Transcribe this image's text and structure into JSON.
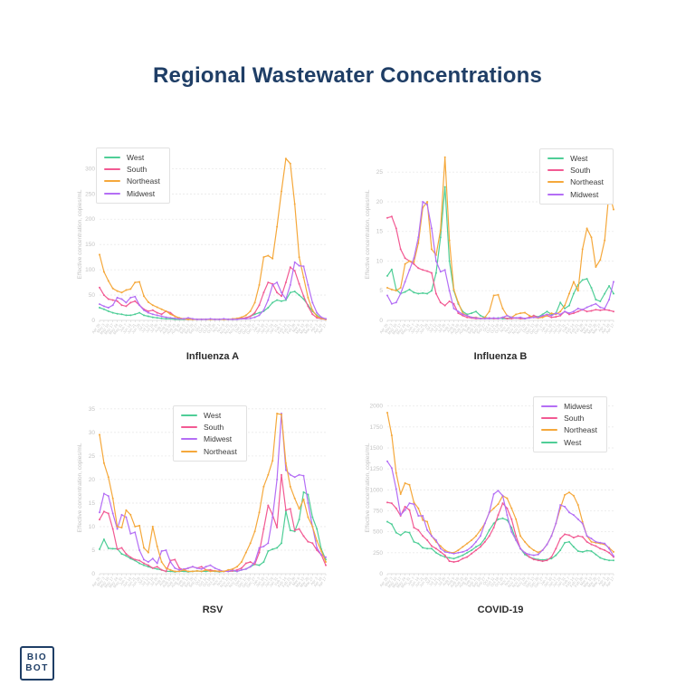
{
  "page": {
    "title": "Regional Wastewater Concentrations",
    "title_color": "#1f3e66",
    "background": "#ffffff"
  },
  "logo": {
    "line1": "BIO",
    "line2": "BOT",
    "color": "#1f3e66"
  },
  "region_colors": {
    "West": "#4fce97",
    "South": "#f25a93",
    "Northeast": "#f5a83b",
    "Midwest": "#b46ef5"
  },
  "axis_style": {
    "ylabel": "Effective concentration, copies/mL",
    "grid": "horizontal dashed",
    "tick_color": "#c4c4c4"
  },
  "x_tick_labels": [
    "Apr 26",
    "May 3",
    "May 10",
    "May 17",
    "May 24",
    "May 31",
    "Jun 7",
    "Jun 14",
    "Jun 21",
    "Jun 28",
    "Jul 5",
    "Jul 12",
    "Jul 19",
    "Jul 26",
    "Aug 2",
    "Aug 9",
    "Aug 16",
    "Aug 23",
    "Aug 30",
    "Sep 6",
    "Sep 13",
    "Sep 20",
    "Sep 27",
    "Oct 4",
    "Oct 11",
    "Oct 18",
    "Oct 25",
    "Nov 1",
    "Nov 8",
    "Nov 15",
    "Nov 22",
    "Nov 29",
    "Dec 6",
    "Dec 13",
    "Dec 20",
    "Dec 27",
    "Jan 3",
    "Jan 10",
    "Jan 17",
    "Jan 24",
    "Jan 31",
    "Feb 7",
    "Feb 14",
    "Feb 21",
    "Feb 28",
    "Mar 6",
    "Mar 13",
    "Mar 20",
    "Mar 27",
    "Apr 3",
    "Apr 10",
    "Apr 17"
  ],
  "chart_data": [
    {
      "type": "line",
      "title": "Influenza A",
      "ylabel": "Effective concentration, copies/mL",
      "yticks": [
        0,
        50,
        100,
        150,
        200,
        250,
        300
      ],
      "ymax": 340,
      "legend_position": "top-left",
      "legend_order": [
        "West",
        "South",
        "Northeast",
        "Midwest"
      ],
      "series": [
        {
          "name": "West",
          "values": [
            25,
            22,
            18,
            15,
            13,
            12,
            10,
            10,
            12,
            15,
            10,
            8,
            6,
            5,
            4,
            3,
            3,
            2,
            2,
            2,
            2,
            2,
            2,
            2,
            2,
            2,
            2,
            2,
            2,
            2,
            2,
            3,
            4,
            5,
            8,
            12,
            15,
            18,
            25,
            35,
            40,
            38,
            40,
            55,
            57,
            50,
            42,
            30,
            18,
            10,
            4,
            2
          ]
        },
        {
          "name": "South",
          "values": [
            65,
            50,
            42,
            40,
            38,
            30,
            28,
            35,
            38,
            30,
            22,
            18,
            20,
            15,
            12,
            18,
            15,
            8,
            4,
            3,
            2,
            2,
            2,
            2,
            2,
            2,
            2,
            2,
            2,
            2,
            2,
            3,
            4,
            5,
            8,
            15,
            30,
            55,
            75,
            72,
            55,
            48,
            75,
            105,
            98,
            72,
            48,
            28,
            12,
            5,
            3,
            2
          ]
        },
        {
          "name": "Northeast",
          "values": [
            130,
            96,
            78,
            63,
            58,
            55,
            60,
            62,
            75,
            76,
            48,
            36,
            30,
            26,
            22,
            18,
            12,
            8,
            5,
            3,
            2,
            2,
            2,
            2,
            2,
            2,
            2,
            2,
            2,
            2,
            3,
            4,
            6,
            10,
            18,
            35,
            70,
            125,
            128,
            122,
            185,
            255,
            320,
            310,
            230,
            125,
            85,
            45,
            20,
            8,
            4,
            2
          ]
        },
        {
          "name": "Midwest",
          "values": [
            32,
            28,
            25,
            30,
            45,
            42,
            35,
            45,
            47,
            30,
            20,
            15,
            12,
            10,
            8,
            6,
            5,
            4,
            3,
            3,
            5,
            3,
            2,
            2,
            2,
            3,
            2,
            2,
            3,
            2,
            2,
            2,
            3,
            3,
            4,
            6,
            10,
            20,
            40,
            70,
            75,
            55,
            42,
            70,
            115,
            108,
            107,
            70,
            35,
            15,
            6,
            3
          ]
        }
      ]
    },
    {
      "type": "line",
      "title": "Influenza B",
      "ylabel": "Effective concentration, copies/mL",
      "yticks": [
        0,
        5,
        10,
        15,
        20,
        25
      ],
      "ymax": 29,
      "legend_position": "top-right",
      "legend_order": [
        "West",
        "South",
        "Northeast",
        "Midwest"
      ],
      "series": [
        {
          "name": "West",
          "values": [
            7.5,
            8.6,
            5.2,
            4.5,
            4.8,
            5.2,
            4.7,
            4.5,
            4.6,
            4.5,
            5,
            8,
            14,
            22.5,
            10,
            5,
            2.8,
            1.5,
            1,
            1.2,
            1.5,
            0.8,
            0.5,
            0.3,
            0.3,
            0.4,
            0.3,
            0.3,
            0.5,
            0.4,
            0.3,
            0.3,
            0.5,
            0.8,
            0.6,
            1,
            1.5,
            1,
            1.2,
            3,
            2,
            2.5,
            4.5,
            6,
            6.8,
            7,
            5.5,
            3.5,
            3.2,
            4.5,
            5.8,
            4.5
          ]
        },
        {
          "name": "South",
          "values": [
            17.3,
            17.5,
            15.5,
            12,
            10.5,
            10,
            9.5,
            8.8,
            8.5,
            8.3,
            8,
            4.5,
            3,
            2.5,
            3.2,
            2.8,
            1.2,
            0.8,
            0.5,
            0.4,
            0.3,
            0.3,
            0.3,
            0.4,
            0.3,
            0.3,
            0.5,
            0.3,
            0.3,
            0.4,
            0.3,
            0.3,
            0.5,
            0.8,
            0.5,
            0.6,
            0.8,
            0.5,
            0.6,
            0.8,
            1.5,
            1,
            1.2,
            1.5,
            1.8,
            1.5,
            1.6,
            1.8,
            1.7,
            1.8,
            1.7,
            1.5
          ]
        },
        {
          "name": "Northeast",
          "values": [
            5.5,
            5.2,
            5,
            5.5,
            9.5,
            10,
            9.8,
            13,
            19,
            20,
            12,
            11,
            15.2,
            27.5,
            13.5,
            5.2,
            3,
            1.2,
            0.8,
            0.5,
            0.5,
            0.3,
            0.5,
            1.5,
            4.2,
            4.3,
            2,
            0.8,
            0.5,
            1,
            1.2,
            1.3,
            0.8,
            0.5,
            0.4,
            0.5,
            0.8,
            1.2,
            1,
            1.5,
            2.5,
            4.5,
            6.5,
            5,
            12,
            15.5,
            14,
            9,
            10.2,
            13.5,
            21.8,
            18.7
          ]
        },
        {
          "name": "Midwest",
          "values": [
            4.2,
            2.8,
            3,
            4.5,
            6.5,
            8.5,
            10.5,
            14,
            20,
            19.5,
            15.5,
            10,
            8.2,
            8.5,
            5,
            2,
            1.5,
            1,
            0.8,
            0.5,
            0.4,
            0.3,
            0.3,
            0.3,
            0.4,
            0.3,
            0.5,
            0.8,
            0.5,
            0.4,
            0.5,
            0.3,
            0.4,
            0.5,
            0.5,
            0.8,
            1,
            0.8,
            1.2,
            1,
            1.5,
            1.2,
            1.5,
            2,
            1.8,
            2.2,
            2.5,
            2.8,
            2.2,
            2,
            3.5,
            6.5
          ]
        }
      ]
    },
    {
      "type": "line",
      "title": "RSV",
      "ylabel": "Effective concentration, copies/mL",
      "yticks": [
        0,
        5,
        10,
        15,
        20,
        25,
        30,
        35
      ],
      "ymax": 36.5,
      "legend_position": "top-center-left",
      "legend_order": [
        "West",
        "South",
        "Midwest",
        "Northeast"
      ],
      "series": [
        {
          "name": "West",
          "values": [
            5.2,
            7.3,
            5.4,
            5.3,
            5.3,
            4.2,
            3.8,
            3.2,
            2.8,
            2.2,
            1.8,
            1.5,
            1.2,
            1,
            0.8,
            0.5,
            0.5,
            0.4,
            0.5,
            0.5,
            0.4,
            0.5,
            0.6,
            0.5,
            0.5,
            0.6,
            0.5,
            0.4,
            0.5,
            0.5,
            0.6,
            0.5,
            0.8,
            1,
            1.5,
            2,
            1.8,
            2.5,
            4.8,
            5.2,
            5.5,
            6.5,
            13.3,
            9.2,
            9,
            11.5,
            17.3,
            16.8,
            12,
            9.5,
            5.2,
            3
          ]
        },
        {
          "name": "South",
          "values": [
            11.5,
            13.2,
            12.8,
            9.5,
            5.2,
            5.5,
            4.2,
            3.5,
            3,
            2.8,
            2.2,
            1.8,
            1.2,
            1.5,
            0.8,
            0.5,
            2.8,
            3,
            1.2,
            0.8,
            1.2,
            1.5,
            1.2,
            1.5,
            0.8,
            0.8,
            0.6,
            0.5,
            0.5,
            0.5,
            0.6,
            0.8,
            1.2,
            2.2,
            2.5,
            2,
            4.5,
            9.5,
            14.5,
            12.5,
            9.8,
            21,
            13.5,
            13.8,
            9.2,
            9.5,
            8,
            6.8,
            6.5,
            5,
            4,
            1.8
          ]
        },
        {
          "name": "Midwest",
          "values": [
            13,
            17,
            16.5,
            12.8,
            9.5,
            12.5,
            12,
            8.5,
            8.8,
            5,
            3,
            2.5,
            3.2,
            2.2,
            4.8,
            5,
            2.5,
            1.2,
            0.8,
            1,
            1.2,
            1.5,
            1.2,
            1,
            1.5,
            1.8,
            1.2,
            0.8,
            0.5,
            0.5,
            0.8,
            0.5,
            0.8,
            1,
            1.5,
            2.5,
            5.5,
            5.8,
            6.5,
            12,
            20,
            34,
            22,
            21,
            20.5,
            21,
            20.8,
            15,
            10,
            5.5,
            4,
            3.5
          ]
        },
        {
          "name": "Northeast",
          "values": [
            29.5,
            23.5,
            20.5,
            16,
            10,
            9.8,
            13.5,
            12.5,
            10,
            10.2,
            5.5,
            4.5,
            10,
            5.8,
            2.5,
            1.2,
            0.8,
            0.5,
            0.5,
            0.8,
            0.5,
            0.5,
            0.6,
            0.5,
            0.8,
            0.5,
            0.6,
            0.5,
            0.5,
            0.8,
            1,
            1.5,
            2.5,
            4.5,
            6.5,
            9,
            13,
            18.5,
            21,
            24,
            34,
            33.8,
            23.5,
            18.5,
            16,
            13.8,
            15.8,
            12,
            10,
            7,
            4.8,
            2.5
          ]
        }
      ]
    },
    {
      "type": "line",
      "title": "COVID-19",
      "ylabel": "Effective concentration, copies/mL",
      "yticks": [
        0,
        250,
        500,
        750,
        1000,
        1250,
        1500,
        1750,
        2000
      ],
      "ymax": 2050,
      "legend_position": "top-right-inset",
      "legend_order": [
        "Midwest",
        "South",
        "Northeast",
        "West"
      ],
      "series": [
        {
          "name": "West",
          "values": [
            620,
            590,
            490,
            460,
            500,
            490,
            380,
            360,
            310,
            300,
            300,
            250,
            220,
            200,
            190,
            180,
            200,
            220,
            250,
            280,
            320,
            350,
            420,
            520,
            600,
            650,
            660,
            640,
            550,
            400,
            300,
            230,
            200,
            180,
            170,
            165,
            170,
            180,
            220,
            280,
            370,
            380,
            320,
            270,
            260,
            275,
            270,
            230,
            190,
            170,
            160,
            160
          ]
        },
        {
          "name": "South",
          "values": [
            850,
            840,
            780,
            690,
            800,
            760,
            550,
            520,
            450,
            400,
            330,
            300,
            260,
            220,
            150,
            140,
            150,
            180,
            200,
            240,
            280,
            320,
            380,
            450,
            550,
            700,
            840,
            780,
            650,
            450,
            300,
            250,
            200,
            170,
            160,
            150,
            160,
            200,
            300,
            420,
            470,
            460,
            430,
            450,
            440,
            380,
            350,
            330,
            300,
            280,
            250,
            200
          ]
        },
        {
          "name": "Northeast",
          "values": [
            1920,
            1650,
            1200,
            950,
            1080,
            1060,
            850,
            780,
            640,
            620,
            450,
            380,
            330,
            280,
            255,
            250,
            280,
            320,
            360,
            400,
            450,
            520,
            600,
            730,
            780,
            830,
            930,
            900,
            780,
            650,
            450,
            380,
            320,
            280,
            255,
            280,
            350,
            450,
            600,
            780,
            940,
            970,
            930,
            820,
            620,
            450,
            380,
            370,
            360,
            350,
            310,
            260
          ]
        },
        {
          "name": "Midwest",
          "values": [
            1340,
            1260,
            1010,
            700,
            760,
            840,
            830,
            690,
            690,
            520,
            450,
            400,
            300,
            260,
            250,
            240,
            250,
            260,
            280,
            320,
            380,
            450,
            600,
            730,
            950,
            990,
            930,
            700,
            500,
            400,
            300,
            250,
            230,
            220,
            230,
            280,
            350,
            450,
            600,
            820,
            800,
            730,
            700,
            650,
            600,
            450,
            420,
            380,
            370,
            360,
            300,
            210
          ]
        }
      ]
    }
  ]
}
